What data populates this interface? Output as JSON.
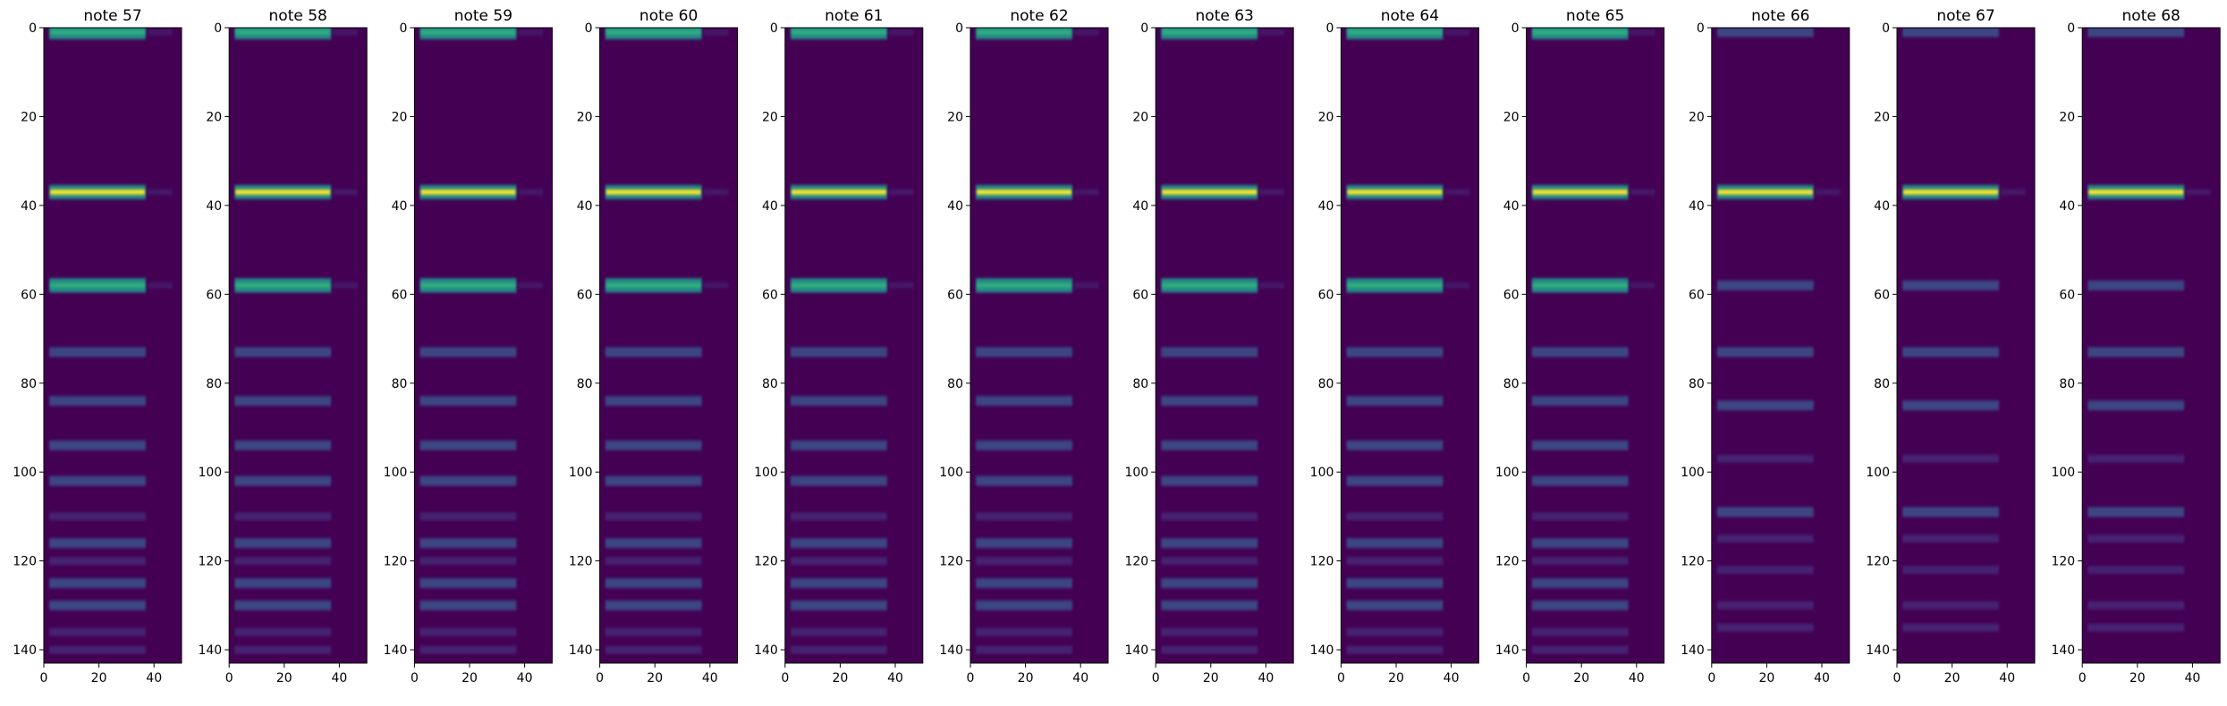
{
  "chart_data": [
    {
      "type": "heatmap",
      "title": "note 57",
      "xlim": [
        0,
        50
      ],
      "ylim": [
        143,
        0
      ],
      "xticks": [
        0,
        20,
        40
      ],
      "yticks": [
        0,
        20,
        40,
        60,
        80,
        100,
        120,
        140
      ],
      "strong_rows": [
        1,
        37,
        58
      ],
      "harmonic_rows": [
        73,
        84,
        94,
        102,
        116,
        125,
        130
      ],
      "weak_rows": [
        110,
        120,
        136,
        140
      ],
      "active_columns": [
        2,
        37
      ]
    },
    {
      "type": "heatmap",
      "title": "note 58",
      "xlim": [
        0,
        50
      ],
      "ylim": [
        143,
        0
      ],
      "xticks": [
        0,
        20,
        40
      ],
      "yticks": [
        0,
        20,
        40,
        60,
        80,
        100,
        120,
        140
      ],
      "strong_rows": [
        1,
        37,
        58
      ],
      "harmonic_rows": [
        73,
        84,
        94,
        102,
        116,
        125,
        130
      ],
      "weak_rows": [
        110,
        120,
        136,
        140
      ],
      "active_columns": [
        2,
        37
      ]
    },
    {
      "type": "heatmap",
      "title": "note 59",
      "xlim": [
        0,
        50
      ],
      "ylim": [
        143,
        0
      ],
      "xticks": [
        0,
        20,
        40
      ],
      "yticks": [
        0,
        20,
        40,
        60,
        80,
        100,
        120,
        140
      ],
      "strong_rows": [
        1,
        37,
        58
      ],
      "harmonic_rows": [
        73,
        84,
        94,
        102,
        116,
        125,
        130
      ],
      "weak_rows": [
        110,
        120,
        136,
        140
      ],
      "active_columns": [
        2,
        37
      ]
    },
    {
      "type": "heatmap",
      "title": "note 60",
      "xlim": [
        0,
        50
      ],
      "ylim": [
        143,
        0
      ],
      "xticks": [
        0,
        20,
        40
      ],
      "yticks": [
        0,
        20,
        40,
        60,
        80,
        100,
        120,
        140
      ],
      "strong_rows": [
        1,
        37,
        58
      ],
      "harmonic_rows": [
        73,
        84,
        94,
        102,
        116,
        125,
        130
      ],
      "weak_rows": [
        110,
        120,
        136,
        140
      ],
      "active_columns": [
        2,
        37
      ]
    },
    {
      "type": "heatmap",
      "title": "note 61",
      "xlim": [
        0,
        50
      ],
      "ylim": [
        143,
        0
      ],
      "xticks": [
        0,
        20,
        40
      ],
      "yticks": [
        0,
        20,
        40,
        60,
        80,
        100,
        120,
        140
      ],
      "strong_rows": [
        1,
        37,
        58
      ],
      "harmonic_rows": [
        73,
        84,
        94,
        102,
        116,
        125,
        130
      ],
      "weak_rows": [
        110,
        120,
        136,
        140
      ],
      "active_columns": [
        2,
        37
      ]
    },
    {
      "type": "heatmap",
      "title": "note 62",
      "xlim": [
        0,
        50
      ],
      "ylim": [
        143,
        0
      ],
      "xticks": [
        0,
        20,
        40
      ],
      "yticks": [
        0,
        20,
        40,
        60,
        80,
        100,
        120,
        140
      ],
      "strong_rows": [
        1,
        37,
        58
      ],
      "harmonic_rows": [
        73,
        84,
        94,
        102,
        116,
        125,
        130
      ],
      "weak_rows": [
        110,
        120,
        136,
        140
      ],
      "active_columns": [
        2,
        37
      ]
    },
    {
      "type": "heatmap",
      "title": "note 63",
      "xlim": [
        0,
        50
      ],
      "ylim": [
        143,
        0
      ],
      "xticks": [
        0,
        20,
        40
      ],
      "yticks": [
        0,
        20,
        40,
        60,
        80,
        100,
        120,
        140
      ],
      "strong_rows": [
        1,
        37,
        58
      ],
      "harmonic_rows": [
        73,
        84,
        94,
        102,
        116,
        125,
        130
      ],
      "weak_rows": [
        110,
        120,
        136,
        140
      ],
      "active_columns": [
        2,
        37
      ]
    },
    {
      "type": "heatmap",
      "title": "note 64",
      "xlim": [
        0,
        50
      ],
      "ylim": [
        143,
        0
      ],
      "xticks": [
        0,
        20,
        40
      ],
      "yticks": [
        0,
        20,
        40,
        60,
        80,
        100,
        120,
        140
      ],
      "strong_rows": [
        1,
        37,
        58
      ],
      "harmonic_rows": [
        73,
        84,
        94,
        102,
        116,
        125,
        130
      ],
      "weak_rows": [
        110,
        120,
        136,
        140
      ],
      "active_columns": [
        2,
        37
      ]
    },
    {
      "type": "heatmap",
      "title": "note 65",
      "xlim": [
        0,
        50
      ],
      "ylim": [
        143,
        0
      ],
      "xticks": [
        0,
        20,
        40
      ],
      "yticks": [
        0,
        20,
        40,
        60,
        80,
        100,
        120,
        140
      ],
      "strong_rows": [
        1,
        37,
        58
      ],
      "harmonic_rows": [
        73,
        84,
        94,
        102,
        116,
        125,
        130
      ],
      "weak_rows": [
        110,
        120,
        136,
        140
      ],
      "active_columns": [
        2,
        37
      ]
    },
    {
      "type": "heatmap",
      "title": "note 66",
      "xlim": [
        0,
        50
      ],
      "ylim": [
        143,
        0
      ],
      "xticks": [
        0,
        20,
        40
      ],
      "yticks": [
        0,
        20,
        40,
        60,
        80,
        100,
        120,
        140
      ],
      "strong_rows": [
        37
      ],
      "harmonic_rows": [
        1,
        58,
        73,
        85,
        109
      ],
      "weak_rows": [
        97,
        115,
        122,
        130,
        135
      ],
      "active_columns": [
        2,
        37
      ]
    },
    {
      "type": "heatmap",
      "title": "note 67",
      "xlim": [
        0,
        50
      ],
      "ylim": [
        143,
        0
      ],
      "xticks": [
        0,
        20,
        40
      ],
      "yticks": [
        0,
        20,
        40,
        60,
        80,
        100,
        120,
        140
      ],
      "strong_rows": [
        37
      ],
      "harmonic_rows": [
        1,
        58,
        73,
        85,
        109
      ],
      "weak_rows": [
        97,
        115,
        122,
        130,
        135
      ],
      "active_columns": [
        2,
        37
      ]
    },
    {
      "type": "heatmap",
      "title": "note 68",
      "xlim": [
        0,
        50
      ],
      "ylim": [
        143,
        0
      ],
      "xticks": [
        0,
        20,
        40
      ],
      "yticks": [
        0,
        20,
        40,
        60,
        80,
        100,
        120,
        140
      ],
      "strong_rows": [
        37
      ],
      "harmonic_rows": [
        1,
        58,
        73,
        85,
        109
      ],
      "weak_rows": [
        97,
        115,
        122,
        130,
        135
      ],
      "active_columns": [
        2,
        37
      ]
    }
  ],
  "colormap": {
    "name": "viridis",
    "background": "#440154",
    "weak": "#472d7b",
    "harmonic": "#3b528b",
    "strong": "#21918c",
    "peak": "#fde725"
  }
}
